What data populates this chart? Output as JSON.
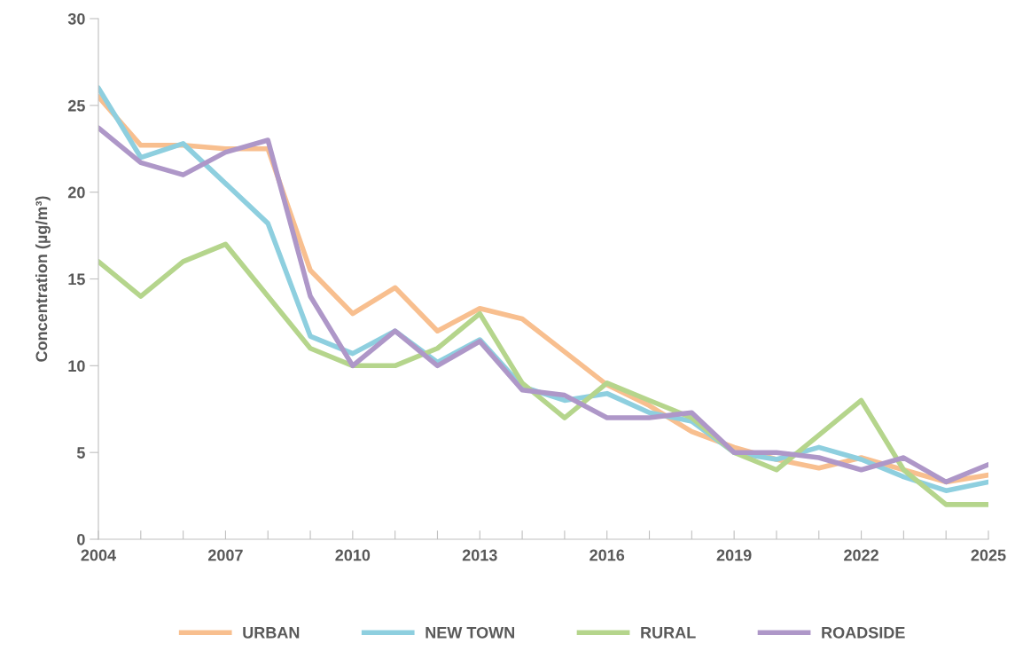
{
  "chart_data": {
    "type": "line",
    "ylabel": "Concentration (µg/m³)",
    "x": [
      2004,
      2005,
      2006,
      2007,
      2008,
      2009,
      2010,
      2011,
      2012,
      2013,
      2014,
      2015,
      2016,
      2017,
      2018,
      2019,
      2020,
      2021,
      2022,
      2023,
      2024,
      2025
    ],
    "series": [
      {
        "name": "URBAN",
        "color": "#f8bf8f",
        "values": [
          25.5,
          22.7,
          22.7,
          22.5,
          22.5,
          15.5,
          13.0,
          14.5,
          12.0,
          13.3,
          12.7,
          10.8,
          8.9,
          7.7,
          6.2,
          5.3,
          4.6,
          4.1,
          4.7,
          4.0,
          3.3,
          3.7
        ]
      },
      {
        "name": "NEW TOWN",
        "color": "#8ecfdf",
        "values": [
          26.0,
          22.0,
          22.8,
          20.5,
          18.2,
          11.7,
          10.7,
          12.0,
          10.2,
          11.5,
          8.8,
          8.0,
          8.4,
          7.3,
          6.8,
          5.0,
          4.6,
          5.3,
          4.6,
          3.6,
          2.8,
          3.3
        ]
      },
      {
        "name": "RURAL",
        "color": "#b5d58c",
        "values": [
          16.0,
          14.0,
          16.0,
          17.0,
          14.0,
          11.0,
          10.0,
          10.0,
          11.0,
          13.0,
          9.0,
          7.0,
          9.0,
          8.0,
          7.0,
          5.0,
          4.0,
          6.0,
          8.0,
          4.0,
          2.0,
          2.0
        ]
      },
      {
        "name": "ROADSIDE",
        "color": "#ae97c8",
        "values": [
          23.7,
          21.7,
          21.0,
          22.3,
          23.0,
          14.0,
          10.0,
          12.0,
          10.0,
          11.4,
          8.6,
          8.3,
          7.0,
          7.0,
          7.3,
          5.0,
          5.0,
          4.7,
          4.0,
          4.7,
          3.3,
          4.3
        ]
      }
    ],
    "xlim": [
      2004,
      2025
    ],
    "xticks": [
      2004,
      {
        "value": 2005,
        "label": null
      },
      {
        "value": 2006,
        "label": null
      },
      2007,
      {
        "value": 2008,
        "label": null
      },
      {
        "value": 2009,
        "label": null
      },
      2010,
      {
        "value": 2011,
        "label": null
      },
      {
        "value": 2012,
        "label": null
      },
      2013,
      {
        "value": 2014,
        "label": null
      },
      {
        "value": 2015,
        "label": null
      },
      2016,
      {
        "value": 2017,
        "label": null
      },
      {
        "value": 2018,
        "label": null
      },
      2019,
      {
        "value": 2020,
        "label": null
      },
      {
        "value": 2021,
        "label": null
      },
      2022,
      {
        "value": 2023,
        "label": null
      },
      {
        "value": 2024,
        "label": null
      },
      2025
    ],
    "ylim": [
      0,
      30
    ],
    "yticks": [
      0,
      5,
      10,
      15,
      20,
      25,
      30
    ],
    "grid": false,
    "legend": "bottom",
    "marker": "none",
    "line_style": "solid"
  }
}
